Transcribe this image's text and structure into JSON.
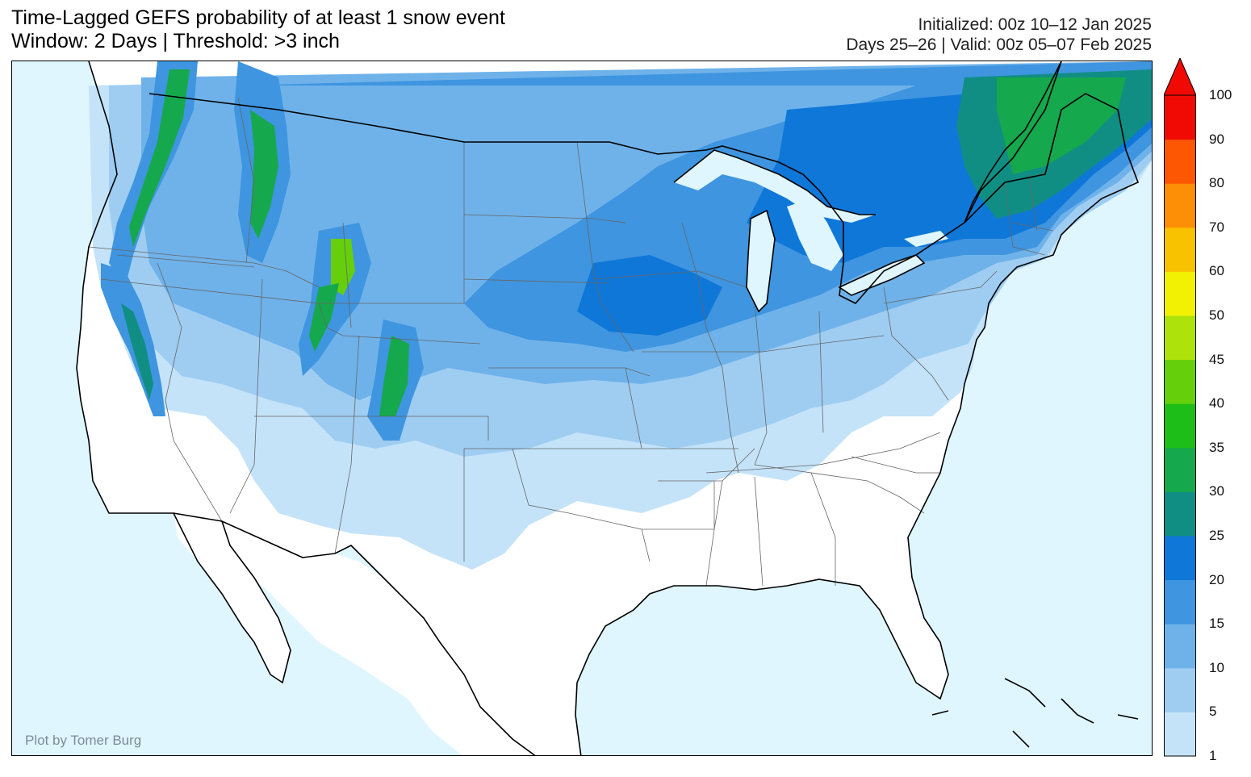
{
  "header": {
    "title_line1": "Time-Lagged GEFS probability of at least 1 snow event",
    "title_line2": "Window: 2 Days | Threshold: >3 inch",
    "init_text": "Initialized: 00z 10–12 Jan 2025",
    "valid_text": "Days 25–26 | Valid: 00z 05–07 Feb 2025"
  },
  "map": {
    "credit": "Plot by Tomer Burg",
    "ocean_color": "#dff6fe",
    "land_color": "#ffffff"
  },
  "colorbar": {
    "unit": "percent",
    "levels": [
      {
        "label": "1",
        "color": "#c4e3f9"
      },
      {
        "label": "5",
        "color": "#9fcdf2"
      },
      {
        "label": "10",
        "color": "#6fb2ea"
      },
      {
        "label": "15",
        "color": "#3f95df"
      },
      {
        "label": "20",
        "color": "#0f77d8"
      },
      {
        "label": "25",
        "color": "#108e84"
      },
      {
        "label": "30",
        "color": "#16a84c"
      },
      {
        "label": "35",
        "color": "#1cbe17"
      },
      {
        "label": "40",
        "color": "#65cf0c"
      },
      {
        "label": "45",
        "color": "#ade20b"
      },
      {
        "label": "50",
        "color": "#f2f003"
      },
      {
        "label": "60",
        "color": "#f9c200"
      },
      {
        "label": "70",
        "color": "#fd8f06"
      },
      {
        "label": "80",
        "color": "#fe5703"
      },
      {
        "label": "90",
        "color": "#f10a03"
      },
      {
        "label": "100",
        "color": ""
      }
    ]
  }
}
